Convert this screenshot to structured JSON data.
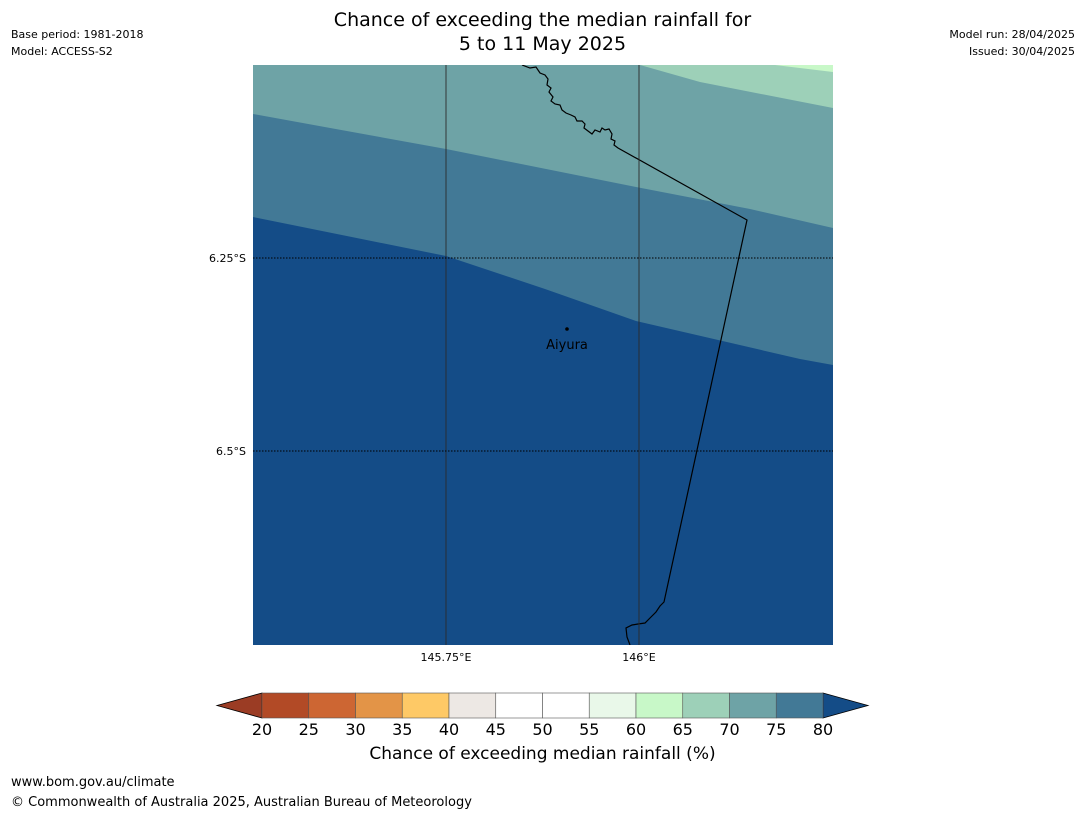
{
  "header": {
    "title_line1": "Chance of exceeding the median rainfall for",
    "title_line2": "5 to 11 May 2025",
    "base_period": "Base period: 1981-2018",
    "model": "Model: ACCESS-S2",
    "model_run": "Model run: 28/04/2025",
    "issued": "Issued: 30/04/2025"
  },
  "map": {
    "latitude_lines": [
      {
        "label": "6.25°S",
        "lat": -6.25
      },
      {
        "label": "6.5°S",
        "lat": -6.5
      }
    ],
    "longitude_lines": [
      {
        "label": "145.75°E",
        "lon": 145.75
      },
      {
        "label": "146°E",
        "lon": 146.0
      }
    ],
    "places": [
      {
        "name": "Aiyura"
      }
    ],
    "colors": {
      "band_60_65": "#c8f8c8",
      "band_65_70": "#9dd0b8",
      "band_70_75": "#6ea3a6",
      "band_75_80": "#427996",
      "band_80_plus": "#144c87"
    }
  },
  "colorbar": {
    "ticks": [
      "20",
      "25",
      "30",
      "35",
      "40",
      "45",
      "50",
      "55",
      "60",
      "65",
      "70",
      "75",
      "80"
    ],
    "colors": [
      "#b24a26",
      "#cd6633",
      "#e39447",
      "#fec966",
      "#ede8e4",
      "#ffffff",
      "#ffffff",
      "#e9f8e9",
      "#c8f8c8",
      "#9dd0b8",
      "#6ea3a6",
      "#427996"
    ],
    "under_color": "#9b3c24",
    "over_color": "#144c87",
    "label": "Chance of exceeding median rainfall (%)"
  },
  "footer": {
    "website": "www.bom.gov.au/climate",
    "copyright": "© Commonwealth of Australia 2025, Australian Bureau of Meteorology"
  }
}
